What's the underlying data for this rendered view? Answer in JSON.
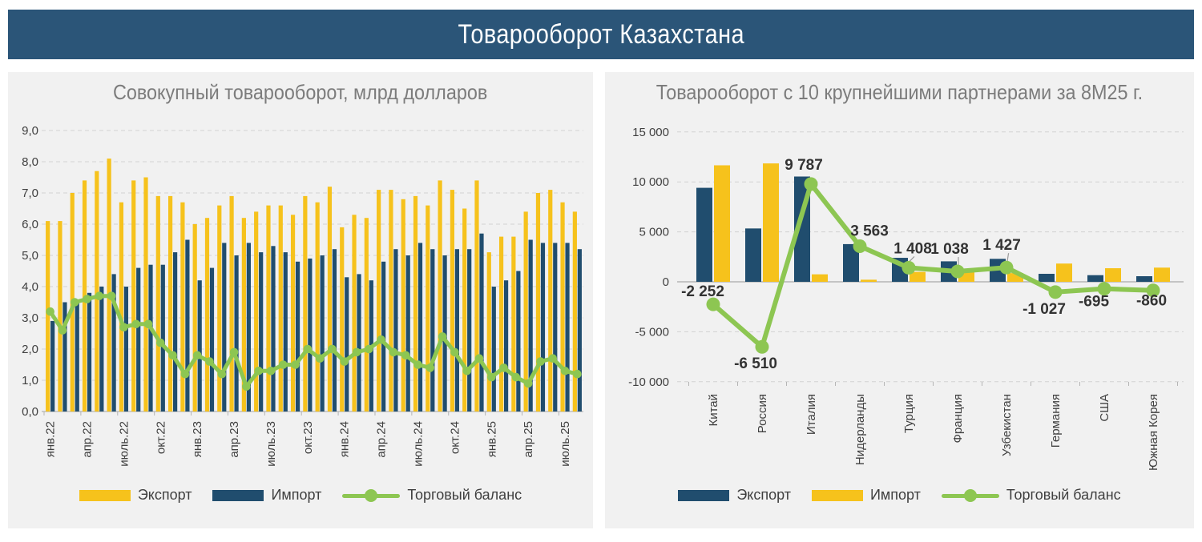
{
  "page": {
    "title": "Товарооборот Казахстана"
  },
  "chart_data": [
    {
      "type": "bar",
      "title": "Совокупный товарооборот, млрд долларов",
      "xlabel": "",
      "ylabel": "млрд долларов",
      "ylim": [
        0,
        9
      ],
      "ytick_step": 1,
      "ytick_labels": [
        "0,0",
        "1,0",
        "2,0",
        "3,0",
        "4,0",
        "5,0",
        "6,0",
        "7,0",
        "8,0",
        "9,0"
      ],
      "x_tick_interval": 3,
      "grid": "dashed-horizontal",
      "legend_position": "bottom",
      "categories": [
        "янв.22",
        "фев.22",
        "мар.22",
        "апр.22",
        "май.22",
        "июн.22",
        "июль.22",
        "авг.22",
        "сен.22",
        "окт.22",
        "ноя.22",
        "дек.22",
        "янв.23",
        "фев.23",
        "мар.23",
        "апр.23",
        "май.23",
        "июн.23",
        "июль.23",
        "авг.23",
        "сен.23",
        "окт.23",
        "ноя.23",
        "дек.23",
        "янв.24",
        "фев.24",
        "мар.24",
        "апр.24",
        "май.24",
        "июн.24",
        "июль.24",
        "авг.24",
        "сен.24",
        "окт.24",
        "ноя.24",
        "дек.24",
        "янв.25",
        "фев.25",
        "мар.25",
        "апр.25",
        "май.25",
        "июн.25",
        "июль.25",
        "авг.25"
      ],
      "series": [
        {
          "name": "Экспорт",
          "type": "bar",
          "color": "#F6C21C",
          "values": [
            6.1,
            6.1,
            7.0,
            7.4,
            7.7,
            8.1,
            6.7,
            7.4,
            7.5,
            6.9,
            6.9,
            6.7,
            6.0,
            6.2,
            6.6,
            6.9,
            6.2,
            6.4,
            6.6,
            6.6,
            6.3,
            6.9,
            6.7,
            7.2,
            5.9,
            6.3,
            6.2,
            7.1,
            7.1,
            6.8,
            6.9,
            6.6,
            7.4,
            7.1,
            6.5,
            7.4,
            5.1,
            5.6,
            5.6,
            6.4,
            7.0,
            7.1,
            6.7,
            6.4
          ]
        },
        {
          "name": "Импорт",
          "type": "bar",
          "color": "#204D6E",
          "values": [
            2.9,
            3.5,
            3.5,
            3.8,
            4.0,
            4.4,
            4.0,
            4.6,
            4.7,
            4.7,
            5.1,
            5.5,
            4.2,
            4.6,
            5.4,
            5.0,
            5.4,
            5.1,
            5.3,
            5.1,
            4.8,
            4.9,
            5.0,
            5.2,
            4.3,
            4.4,
            4.2,
            4.8,
            5.2,
            5.0,
            5.4,
            5.2,
            5.0,
            5.2,
            5.2,
            5.7,
            4.0,
            4.2,
            4.5,
            5.5,
            5.4,
            5.4,
            5.4,
            5.2
          ]
        },
        {
          "name": "Торговый баланс",
          "type": "line",
          "color": "#8DC652",
          "values": [
            3.2,
            2.6,
            3.5,
            3.6,
            3.7,
            3.7,
            2.7,
            2.8,
            2.8,
            2.2,
            1.8,
            1.2,
            1.8,
            1.6,
            1.2,
            1.9,
            0.8,
            1.3,
            1.3,
            1.5,
            1.5,
            2.0,
            1.7,
            2.0,
            1.6,
            1.9,
            2.0,
            2.3,
            1.9,
            1.8,
            1.5,
            1.4,
            2.4,
            1.9,
            1.3,
            1.7,
            1.1,
            1.4,
            1.1,
            0.9,
            1.6,
            1.7,
            1.3,
            1.2
          ]
        }
      ]
    },
    {
      "type": "bar",
      "title": "Товарооборот с 10 крупнейшими партнерами за 8М25 г.",
      "xlabel": "",
      "ylabel": "",
      "ylim": [
        -10000,
        15000
      ],
      "ytick_step": 5000,
      "ytick_labels": [
        "15 000",
        "10 000",
        "5 000",
        "0",
        "-5 000",
        "-10 000"
      ],
      "grid": "dashed-horizontal",
      "legend_position": "bottom",
      "categories": [
        "Китай",
        "Россия",
        "Италия",
        "Нидерланды",
        "Турция",
        "Франция",
        "Узбекистан",
        "Германия",
        "США",
        "Южная Корея"
      ],
      "series": [
        {
          "name": "Экспорт",
          "type": "bar",
          "color": "#204D6E",
          "values": [
            9408,
            5340,
            10537,
            3773,
            2400,
            2050,
            2300,
            800,
            665,
            560
          ]
        },
        {
          "name": "Импорт",
          "type": "bar",
          "color": "#F6C21C",
          "values": [
            11660,
            11850,
            750,
            210,
            992,
            1012,
            873,
            1827,
            1360,
            1420
          ]
        },
        {
          "name": "Торговый баланс",
          "type": "line",
          "color": "#8DC652",
          "values": [
            -2252,
            -6510,
            9787,
            3563,
            1408,
            1038,
            1427,
            -1027,
            -695,
            -860
          ],
          "labels": [
            "-2 252",
            "-6 510",
            "9 787",
            "3 563",
            "1 408",
            "1 038",
            "1 427",
            "-1 027",
            "-695",
            "-860"
          ]
        }
      ]
    }
  ],
  "colors": {
    "banner_bg": "#2B5578",
    "panel_bg": "#F1F1F1",
    "title_text": "#7C7C7C",
    "axis_text": "#404040",
    "data_label_text": "#333333",
    "gridline": "#D2D2D2",
    "axis_line": "#B5B5B5",
    "export_left": "#F6C21C",
    "import_left": "#204D6E",
    "export_right": "#204D6E",
    "import_right": "#F6C21C",
    "balance_line": "#8DC652"
  }
}
